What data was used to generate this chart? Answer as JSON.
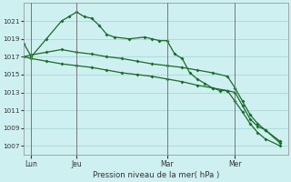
{
  "title": "Pression niveau de la mer( hPa )",
  "bg_color": "#cff0f0",
  "grid_color": "#a8d8d8",
  "line_color": "#1a6b2a",
  "ylim": [
    1006,
    1023
  ],
  "yticks": [
    1007,
    1009,
    1011,
    1013,
    1015,
    1017,
    1019,
    1021
  ],
  "xlim": [
    0,
    35
  ],
  "xtick_labels": [
    "Lun",
    "Jeu",
    "Mar",
    "Mer"
  ],
  "xtick_positions": [
    1,
    7,
    19,
    28
  ],
  "vlines": [
    1,
    7,
    19,
    28
  ],
  "series1_x": [
    0,
    1,
    3,
    5,
    6,
    7,
    8,
    9,
    10,
    11,
    12,
    14,
    16,
    17,
    18,
    19,
    20,
    21,
    22,
    23,
    24,
    25,
    26,
    27,
    28,
    29,
    30,
    31,
    32,
    34
  ],
  "series1_y": [
    1018.5,
    1017.0,
    1019.0,
    1021.0,
    1021.5,
    1022.0,
    1021.5,
    1021.3,
    1020.5,
    1019.5,
    1019.2,
    1019.0,
    1019.2,
    1019.0,
    1018.8,
    1018.8,
    1017.3,
    1016.8,
    1015.2,
    1014.5,
    1014.0,
    1013.5,
    1013.2,
    1013.2,
    1013.0,
    1011.5,
    1010.0,
    1009.2,
    1008.8,
    1007.3
  ],
  "series2_x": [
    0,
    1,
    3,
    5,
    7,
    9,
    11,
    13,
    15,
    17,
    19,
    21,
    23,
    25,
    27,
    28,
    29,
    30,
    31,
    32,
    34
  ],
  "series2_y": [
    1017.0,
    1017.2,
    1017.5,
    1017.8,
    1017.5,
    1017.3,
    1017.0,
    1016.8,
    1016.5,
    1016.2,
    1016.0,
    1015.8,
    1015.5,
    1015.2,
    1014.8,
    1013.5,
    1012.0,
    1010.5,
    1009.5,
    1008.8,
    1007.5
  ],
  "series3_x": [
    0,
    1,
    3,
    5,
    7,
    9,
    11,
    13,
    15,
    17,
    19,
    21,
    23,
    25,
    27,
    28,
    29,
    30,
    31,
    32,
    34
  ],
  "series3_y": [
    1017.0,
    1016.8,
    1016.5,
    1016.2,
    1016.0,
    1015.8,
    1015.5,
    1015.2,
    1015.0,
    1014.8,
    1014.5,
    1014.2,
    1013.8,
    1013.5,
    1013.2,
    1012.0,
    1010.8,
    1009.5,
    1008.5,
    1007.8,
    1007.0
  ]
}
